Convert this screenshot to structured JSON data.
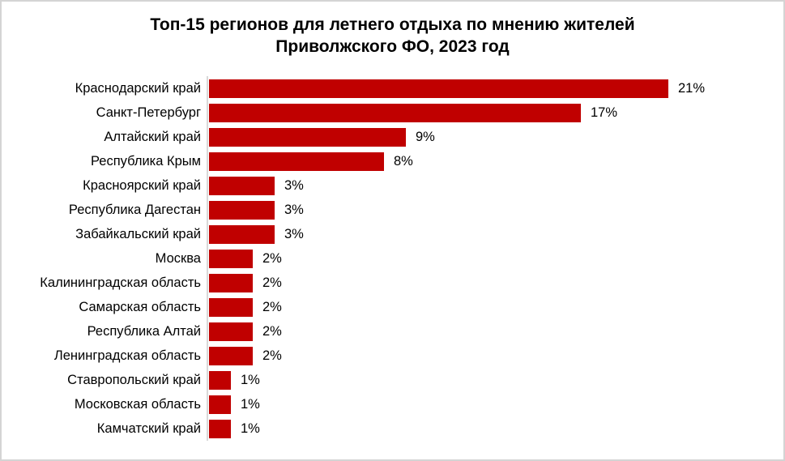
{
  "frame": {
    "background_color": "#ffffff",
    "border_color": "#d4d4d4"
  },
  "chart_data": {
    "type": "bar",
    "orientation": "horizontal",
    "title": "Топ-15 регионов для летнего отдыха по мнению жителей\nПриволжского ФО, 2023 год",
    "categories": [
      "Краснодарский край",
      "Санкт-Петербург",
      "Алтайский край",
      "Республика Крым",
      "Красноярский край",
      "Республика Дагестан",
      "Забайкальский край",
      "Москва",
      "Калининградская область",
      "Самарская область",
      "Республика Алтай",
      "Ленинградская область",
      "Ставропольский край",
      "Московская область",
      "Камчатский край"
    ],
    "values": [
      21,
      17,
      9,
      8,
      3,
      3,
      3,
      2,
      2,
      2,
      2,
      2,
      1,
      1,
      1
    ],
    "value_labels": [
      "21%",
      "17%",
      "9%",
      "8%",
      "3%",
      "3%",
      "3%",
      "2%",
      "2%",
      "2%",
      "2%",
      "2%",
      "1%",
      "1%",
      "1%"
    ],
    "unit": "%",
    "xlim": [
      0,
      23
    ],
    "grid": false,
    "legend": false,
    "bar_color": "#c00000",
    "axis_line_color": "#d9d9d9",
    "text_color": "#000000"
  }
}
